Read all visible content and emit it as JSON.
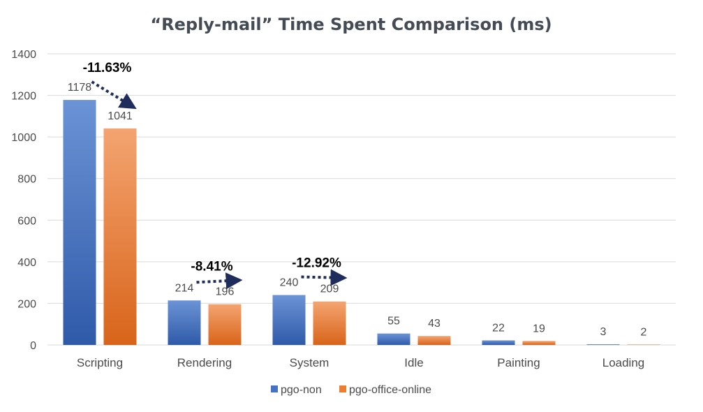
{
  "chart_data": {
    "type": "bar",
    "title": "“Reply-mail” Time Spent Comparison (ms)",
    "categories": [
      "Scripting",
      "Rendering",
      "System",
      "Idle",
      "Painting",
      "Loading"
    ],
    "series": [
      {
        "name": "pgo-non",
        "values": [
          1178,
          214,
          240,
          55,
          22,
          3
        ]
      },
      {
        "name": "pgo-office-online",
        "values": [
          1041,
          196,
          209,
          43,
          19,
          2
        ]
      }
    ],
    "ylim": [
      0,
      1400
    ],
    "yticks": [
      0,
      200,
      400,
      600,
      800,
      1000,
      1200,
      1400
    ],
    "grid": true,
    "legend": "bottom-center",
    "annotations": [
      {
        "category_index": 0,
        "text": "-11.63%"
      },
      {
        "category_index": 1,
        "text": "-8.41%"
      },
      {
        "category_index": 2,
        "text": "-12.92%"
      }
    ]
  },
  "colors": {
    "series": [
      "#4472c4",
      "#ed7d31"
    ],
    "series_light": [
      "#6b93d6",
      "#f4a471"
    ],
    "series_dark": [
      "#2f5aa8",
      "#d8641a"
    ],
    "grid": "#d9d9d9",
    "arrow": "#1f2d5c"
  }
}
